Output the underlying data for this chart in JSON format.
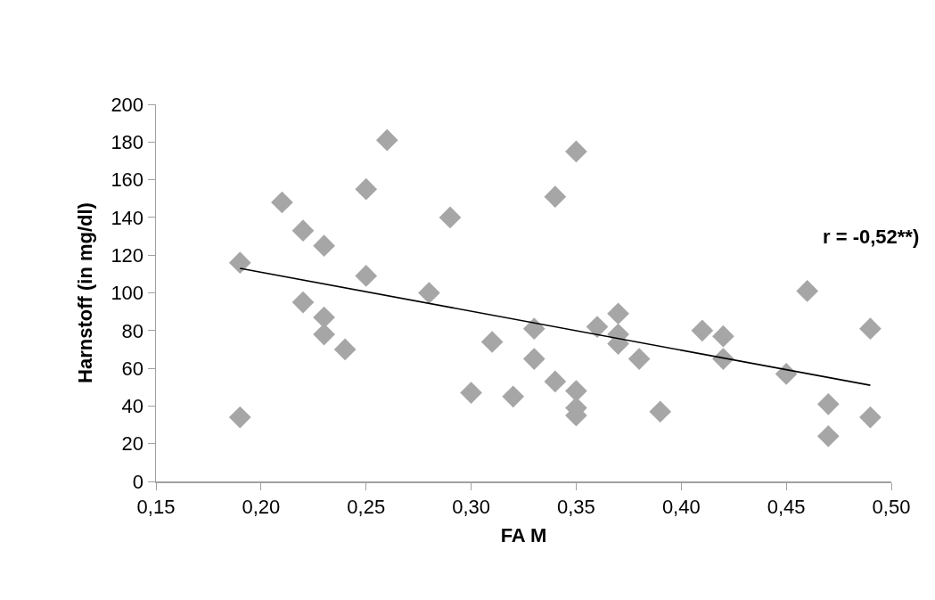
{
  "chart_data": {
    "type": "scatter",
    "xlabel": "FA M",
    "ylabel": "Harnstoff (in mg/dl)",
    "annotations": [
      "r = -0,52**)"
    ],
    "xlim": [
      0.15,
      0.5
    ],
    "xticks": [
      {
        "value": 0.15,
        "label": "0,15"
      },
      {
        "value": 0.2,
        "label": "0,20"
      },
      {
        "value": 0.25,
        "label": "0,25"
      },
      {
        "value": 0.3,
        "label": "0,30"
      },
      {
        "value": 0.35,
        "label": "0,35"
      },
      {
        "value": 0.4,
        "label": "0,40"
      },
      {
        "value": 0.45,
        "label": "0,45"
      },
      {
        "value": 0.5,
        "label": "0,50"
      }
    ],
    "ylim": [
      0,
      200
    ],
    "yticks": [
      0,
      20,
      40,
      60,
      80,
      100,
      120,
      140,
      160,
      180,
      200
    ],
    "grid": false,
    "series": [
      {
        "type": "scatter",
        "marker": "diamond",
        "color": "#a6a6a6",
        "x": [
          0.19,
          0.19,
          0.21,
          0.22,
          0.22,
          0.23,
          0.23,
          0.23,
          0.24,
          0.25,
          0.25,
          0.26,
          0.28,
          0.29,
          0.3,
          0.31,
          0.32,
          0.33,
          0.33,
          0.34,
          0.34,
          0.35,
          0.35,
          0.35,
          0.35,
          0.36,
          0.37,
          0.37,
          0.37,
          0.38,
          0.39,
          0.41,
          0.42,
          0.42,
          0.45,
          0.46,
          0.47,
          0.47,
          0.49,
          0.49
        ],
        "values": [
          116,
          34,
          148,
          133,
          95,
          125,
          87,
          78,
          70,
          155,
          109,
          181,
          100,
          140,
          47,
          74,
          45,
          81,
          65,
          151,
          53,
          175,
          48,
          39,
          35,
          82,
          89,
          78,
          73,
          65,
          37,
          80,
          77,
          65,
          57,
          101,
          41,
          24,
          81,
          34
        ]
      },
      {
        "type": "line",
        "marker": "none",
        "line_style": "solid",
        "color": "#000000",
        "x": [
          0.19,
          0.49
        ],
        "values": [
          113,
          51
        ]
      }
    ]
  }
}
